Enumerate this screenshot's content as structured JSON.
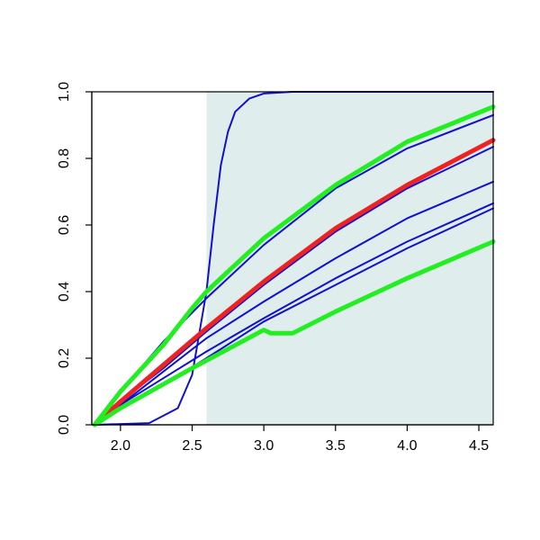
{
  "chart_data": {
    "type": "line",
    "title": "",
    "xlabel": "",
    "ylabel": "",
    "xlim": [
      1.8,
      4.6
    ],
    "ylim": [
      0.0,
      1.0
    ],
    "grid": false,
    "legend": "none",
    "x_ticks": [
      "2.0",
      "2.5",
      "3.0",
      "3.5",
      "4.0",
      "4.5"
    ],
    "x_tick_values": [
      2.0,
      2.5,
      3.0,
      3.5,
      4.0,
      4.5
    ],
    "y_ticks": [
      "0.0",
      "0.2",
      "0.4",
      "0.6",
      "0.8",
      "1.0"
    ],
    "y_tick_values": [
      0.0,
      0.2,
      0.4,
      0.6,
      0.8,
      1.0
    ],
    "shaded_region": {
      "x_from": 2.6,
      "x_to": 4.6,
      "color": "#e0eded"
    },
    "colors": {
      "blue": "#1111cc",
      "red": "#ee2222",
      "green": "#22ee22"
    },
    "series": [
      {
        "color": "blue",
        "width": "thin",
        "points": [
          [
            1.82,
            0.0
          ],
          [
            2.2,
            0.005
          ],
          [
            2.4,
            0.05
          ],
          [
            2.5,
            0.15
          ],
          [
            2.6,
            0.4
          ],
          [
            2.65,
            0.6
          ],
          [
            2.7,
            0.78
          ],
          [
            2.75,
            0.88
          ],
          [
            2.8,
            0.94
          ],
          [
            2.9,
            0.98
          ],
          [
            3.0,
            0.995
          ],
          [
            3.2,
            1.0
          ],
          [
            4.6,
            1.0
          ]
        ]
      },
      {
        "color": "blue",
        "width": "thin",
        "points": [
          [
            1.82,
            0.0
          ],
          [
            2.0,
            0.1
          ],
          [
            2.3,
            0.25
          ],
          [
            2.6,
            0.38
          ],
          [
            3.0,
            0.54
          ],
          [
            3.5,
            0.71
          ],
          [
            4.0,
            0.83
          ],
          [
            4.6,
            0.93
          ]
        ]
      },
      {
        "color": "blue",
        "width": "thin",
        "points": [
          [
            1.82,
            0.0
          ],
          [
            2.0,
            0.07
          ],
          [
            2.3,
            0.17
          ],
          [
            2.6,
            0.28
          ],
          [
            3.0,
            0.42
          ],
          [
            3.5,
            0.58
          ],
          [
            4.0,
            0.71
          ],
          [
            4.6,
            0.835
          ]
        ]
      },
      {
        "color": "blue",
        "width": "thin",
        "points": [
          [
            1.82,
            0.0
          ],
          [
            2.0,
            0.06
          ],
          [
            2.3,
            0.16
          ],
          [
            2.6,
            0.26
          ],
          [
            3.0,
            0.37
          ],
          [
            3.5,
            0.5
          ],
          [
            4.0,
            0.62
          ],
          [
            4.6,
            0.73
          ]
        ]
      },
      {
        "color": "blue",
        "width": "thin",
        "points": [
          [
            1.82,
            0.0
          ],
          [
            2.0,
            0.06
          ],
          [
            2.3,
            0.14
          ],
          [
            2.6,
            0.22
          ],
          [
            3.0,
            0.32
          ],
          [
            3.5,
            0.44
          ],
          [
            4.0,
            0.55
          ],
          [
            4.6,
            0.665
          ]
        ]
      },
      {
        "color": "blue",
        "width": "thin",
        "points": [
          [
            1.82,
            0.0
          ],
          [
            2.0,
            0.05
          ],
          [
            2.3,
            0.12
          ],
          [
            2.6,
            0.2
          ],
          [
            3.0,
            0.31
          ],
          [
            3.5,
            0.42
          ],
          [
            4.0,
            0.53
          ],
          [
            4.6,
            0.65
          ]
        ]
      },
      {
        "color": "red",
        "width": "thick",
        "points": [
          [
            1.82,
            0.0
          ],
          [
            2.0,
            0.07
          ],
          [
            2.3,
            0.18
          ],
          [
            2.6,
            0.29
          ],
          [
            3.0,
            0.43
          ],
          [
            3.5,
            0.59
          ],
          [
            4.0,
            0.72
          ],
          [
            4.6,
            0.855
          ]
        ]
      },
      {
        "color": "green",
        "width": "thick",
        "points": [
          [
            1.82,
            0.0
          ],
          [
            2.0,
            0.1
          ],
          [
            2.3,
            0.24
          ],
          [
            2.5,
            0.35
          ],
          [
            2.6,
            0.4
          ],
          [
            3.0,
            0.56
          ],
          [
            3.5,
            0.72
          ],
          [
            4.0,
            0.85
          ],
          [
            4.6,
            0.955
          ]
        ]
      },
      {
        "color": "green",
        "width": "thick",
        "points": [
          [
            1.82,
            0.0
          ],
          [
            2.0,
            0.05
          ],
          [
            2.5,
            0.17
          ],
          [
            3.0,
            0.285
          ],
          [
            3.05,
            0.275
          ],
          [
            3.2,
            0.275
          ],
          [
            3.5,
            0.34
          ],
          [
            4.0,
            0.44
          ],
          [
            4.6,
            0.55
          ]
        ]
      }
    ]
  }
}
